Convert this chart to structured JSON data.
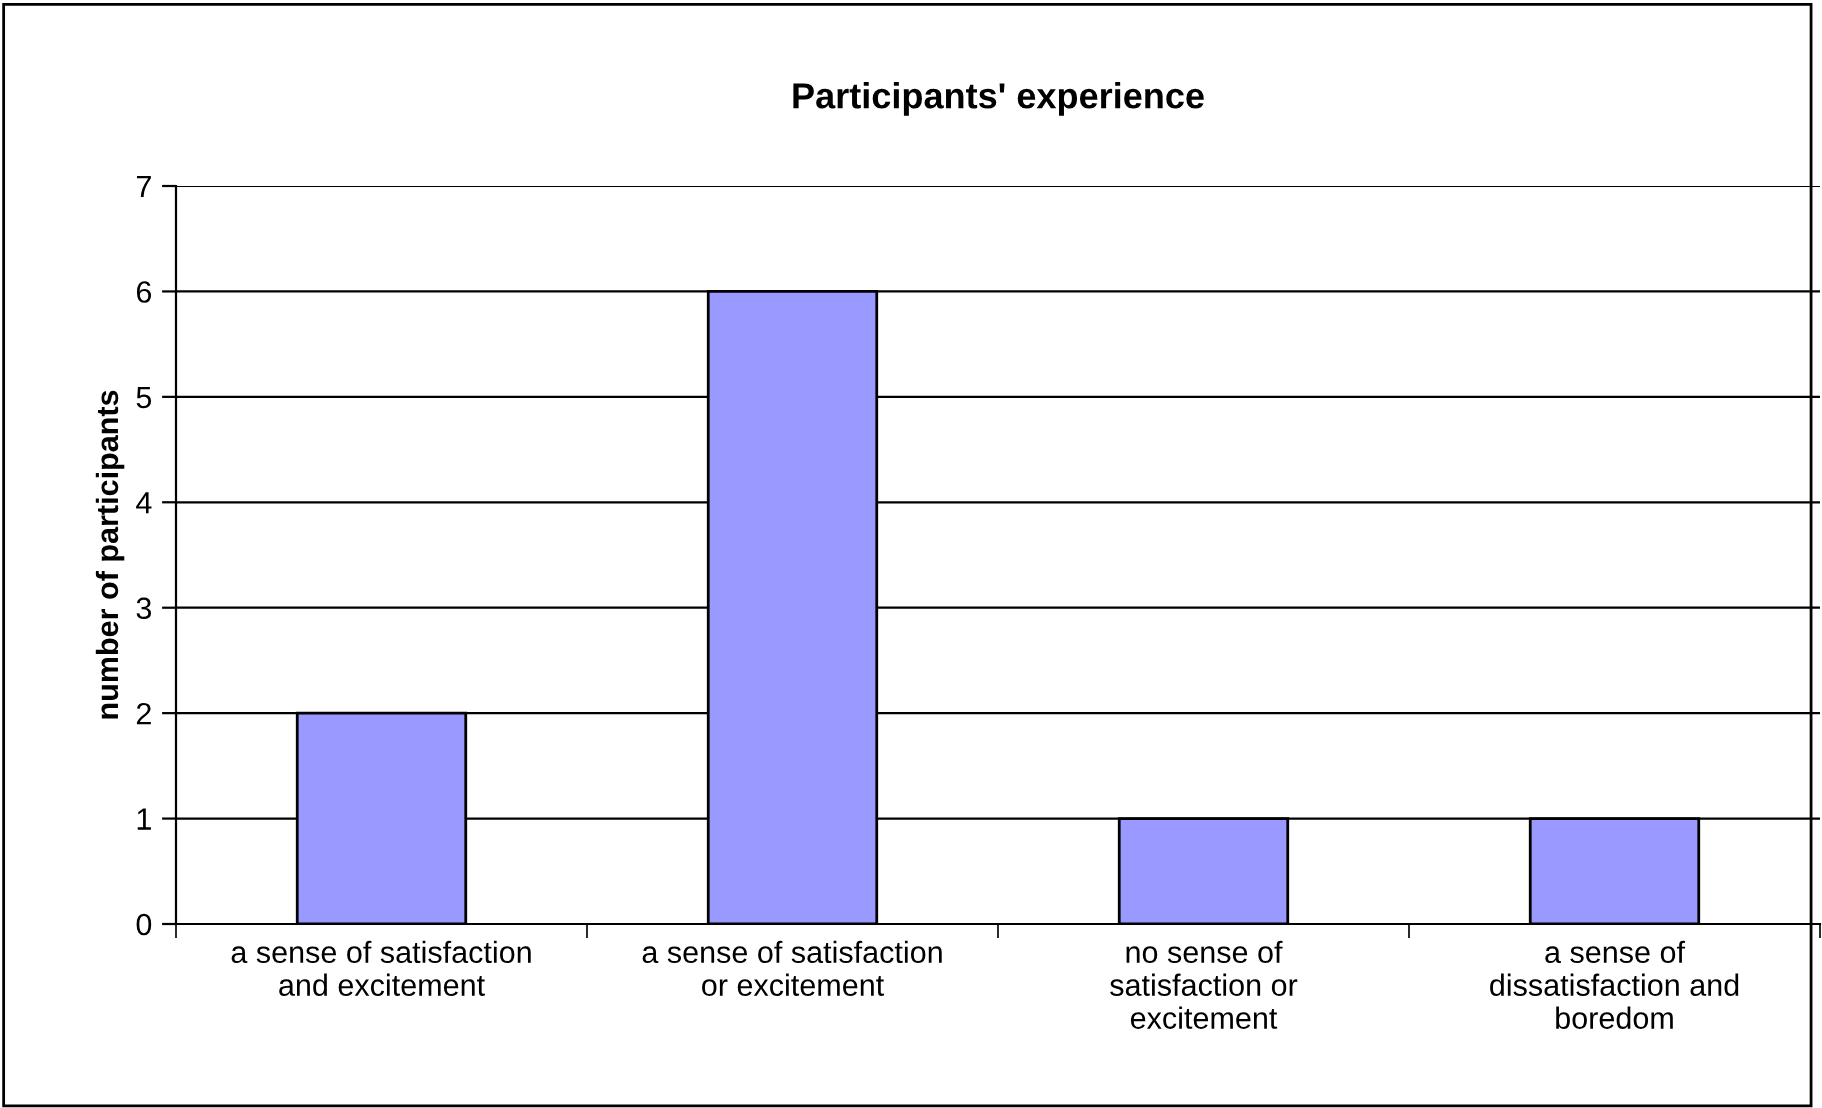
{
  "chart_data": {
    "type": "bar",
    "title": "Participants' experience",
    "ylabel": "number of participants",
    "categories": [
      "a sense of satisfaction\nand excitement",
      "a sense of satisfaction\nor excitement",
      "no sense of\nsatisfaction or\nexcitement",
      "a sense of\ndissatisfaction and\nboredom"
    ],
    "values": [
      2,
      6,
      1,
      1
    ],
    "color": "#9999ff",
    "ylim": [
      0,
      7
    ],
    "yticks": [
      0,
      1,
      2,
      3,
      4,
      5,
      6,
      7
    ],
    "grid": "y"
  }
}
